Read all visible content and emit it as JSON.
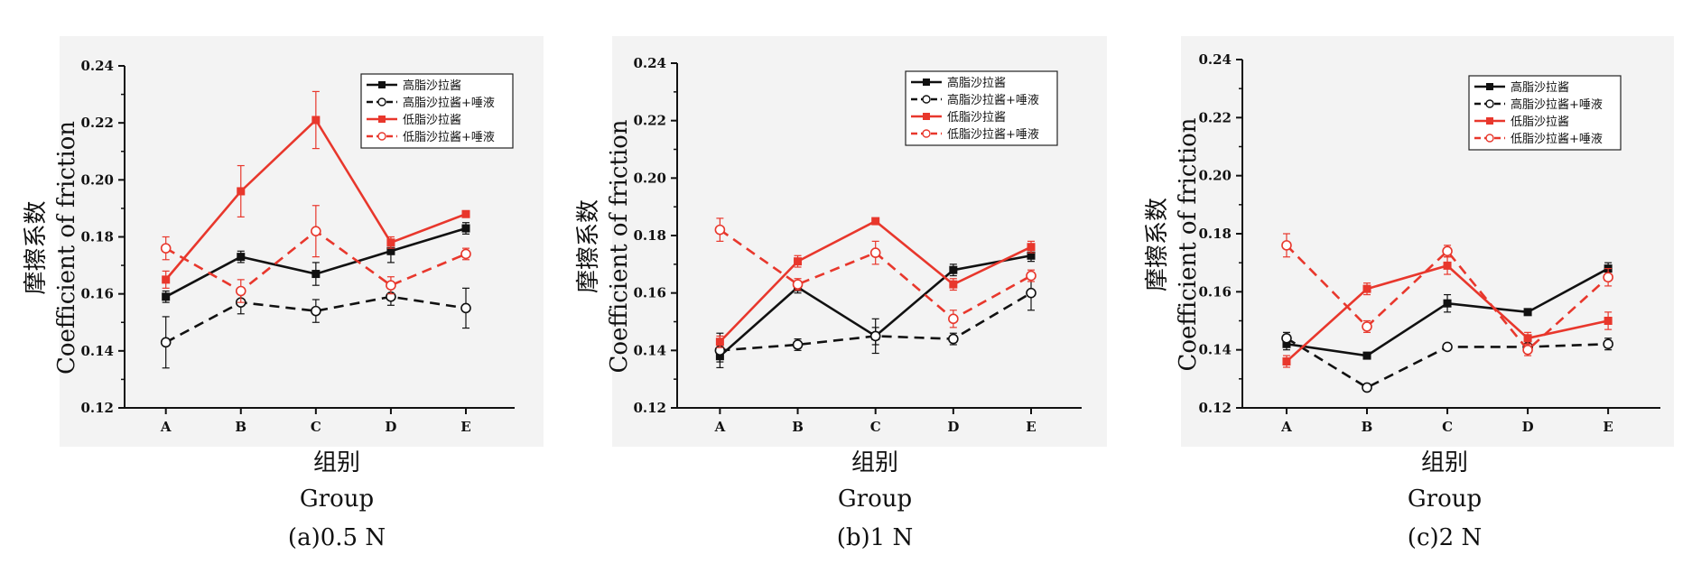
{
  "chart_data": [
    {
      "type": "line",
      "caption": "(a)0.5 N",
      "xlabel_cn": "组别",
      "xlabel_en": "Group",
      "ylabel_cn": "摩擦系数",
      "ylabel_en": "Coefficient of friction",
      "categories": [
        "A",
        "B",
        "C",
        "D",
        "E"
      ],
      "ylim": [
        0.12,
        0.24
      ],
      "yticks": [
        "0.12",
        "0.14",
        "0.16",
        "0.18",
        "0.20",
        "0.22",
        "0.24"
      ],
      "legend_position": "top-right",
      "series": [
        {
          "name": "高脂沙拉酱",
          "color": "#111111",
          "dash": false,
          "marker": "filled-square",
          "values": [
            0.159,
            0.173,
            0.167,
            0.175,
            0.183
          ],
          "errors": [
            0.002,
            0.002,
            0.004,
            0.004,
            0.002
          ]
        },
        {
          "name": "高脂沙拉酱+唾液",
          "color": "#111111",
          "dash": true,
          "marker": "open-circle",
          "values": [
            0.143,
            0.157,
            0.154,
            0.159,
            0.155
          ],
          "errors": [
            0.009,
            0.004,
            0.004,
            0.003,
            0.007
          ]
        },
        {
          "name": "低脂沙拉酱",
          "color": "#e8372c",
          "dash": false,
          "marker": "filled-square",
          "values": [
            0.165,
            0.196,
            0.221,
            0.178,
            0.188
          ],
          "errors": [
            0.003,
            0.009,
            0.01,
            0.002,
            0.001
          ]
        },
        {
          "name": "低脂沙拉酱+唾液",
          "color": "#e8372c",
          "dash": true,
          "marker": "open-circle",
          "values": [
            0.176,
            0.161,
            0.182,
            0.163,
            0.174
          ],
          "errors": [
            0.004,
            0.004,
            0.009,
            0.003,
            0.002
          ]
        }
      ]
    },
    {
      "type": "line",
      "caption": "(b)1 N",
      "xlabel_cn": "组别",
      "xlabel_en": "Group",
      "ylabel_cn": "摩擦系数",
      "ylabel_en": "Coefficient of friction",
      "categories": [
        "A",
        "B",
        "C",
        "D",
        "E"
      ],
      "ylim": [
        0.12,
        0.24
      ],
      "yticks": [
        "0.12",
        "0.14",
        "0.16",
        "0.18",
        "0.20",
        "0.22",
        "0.24"
      ],
      "legend_position": "top-right",
      "series": [
        {
          "name": "高脂沙拉酱",
          "color": "#111111",
          "dash": false,
          "marker": "filled-square",
          "values": [
            0.138,
            0.162,
            0.145,
            0.168,
            0.173
          ],
          "errors": [
            0.002,
            0.002,
            0.003,
            0.002,
            0.002
          ]
        },
        {
          "name": "高脂沙拉酱+唾液",
          "color": "#111111",
          "dash": true,
          "marker": "open-circle",
          "values": [
            0.14,
            0.142,
            0.145,
            0.144,
            0.16
          ],
          "errors": [
            0.006,
            0.002,
            0.006,
            0.002,
            0.006
          ]
        },
        {
          "name": "低脂沙拉酱",
          "color": "#e8372c",
          "dash": false,
          "marker": "filled-square",
          "values": [
            0.143,
            0.171,
            0.185,
            0.163,
            0.176
          ],
          "errors": [
            0.002,
            0.002,
            0.001,
            0.002,
            0.002
          ]
        },
        {
          "name": "低脂沙拉酱+唾液",
          "color": "#e8372c",
          "dash": true,
          "marker": "open-circle",
          "values": [
            0.182,
            0.163,
            0.174,
            0.151,
            0.166
          ],
          "errors": [
            0.004,
            0.002,
            0.004,
            0.003,
            0.002
          ]
        }
      ]
    },
    {
      "type": "line",
      "caption": "(c)2 N",
      "xlabel_cn": "组别",
      "xlabel_en": "Group",
      "ylabel_cn": "摩擦系数",
      "ylabel_en": "Coefficient of friction",
      "categories": [
        "A",
        "B",
        "C",
        "D",
        "E"
      ],
      "ylim": [
        0.12,
        0.24
      ],
      "yticks": [
        "0.12",
        "0.14",
        "0.16",
        "0.18",
        "0.20",
        "0.22",
        "0.24"
      ],
      "legend_position": "top-right",
      "series": [
        {
          "name": "高脂沙拉酱",
          "color": "#111111",
          "dash": false,
          "marker": "filled-square",
          "values": [
            0.142,
            0.138,
            0.156,
            0.153,
            0.168
          ],
          "errors": [
            0.002,
            0.001,
            0.003,
            0.001,
            0.002
          ]
        },
        {
          "name": "高脂沙拉酱+唾液",
          "color": "#111111",
          "dash": true,
          "marker": "open-circle",
          "values": [
            0.144,
            0.127,
            0.141,
            0.141,
            0.142
          ],
          "errors": [
            0.002,
            0.001,
            0.001,
            0.001,
            0.002
          ]
        },
        {
          "name": "低脂沙拉酱",
          "color": "#e8372c",
          "dash": false,
          "marker": "filled-square",
          "values": [
            0.136,
            0.161,
            0.169,
            0.144,
            0.15
          ],
          "errors": [
            0.002,
            0.002,
            0.003,
            0.002,
            0.003
          ]
        },
        {
          "name": "低脂沙拉酱+唾液",
          "color": "#e8372c",
          "dash": true,
          "marker": "open-circle",
          "values": [
            0.176,
            0.148,
            0.174,
            0.14,
            0.165
          ],
          "errors": [
            0.004,
            0.002,
            0.002,
            0.002,
            0.003
          ]
        }
      ]
    }
  ]
}
